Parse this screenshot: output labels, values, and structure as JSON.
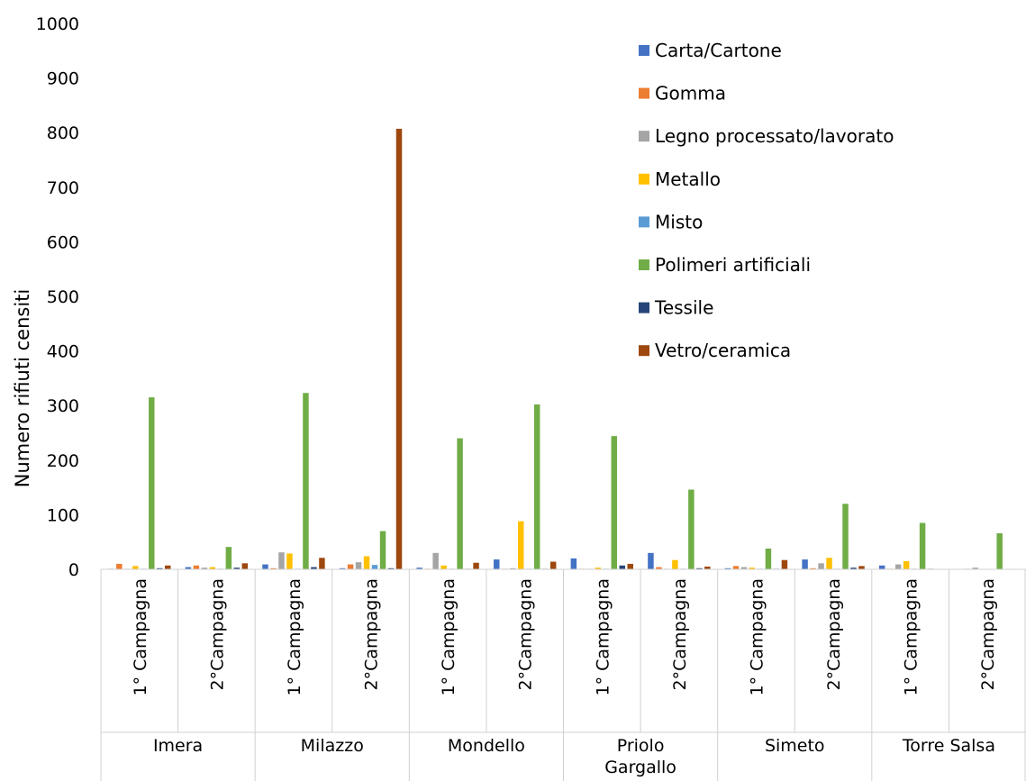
{
  "chart_data": {
    "type": "bar",
    "title": "",
    "xlabel": "",
    "ylabel": "Numero rifiuti  censiti",
    "ylim": [
      0,
      1000
    ],
    "yticks": [
      0,
      100,
      200,
      300,
      400,
      500,
      600,
      700,
      800,
      900,
      1000
    ],
    "grid": false,
    "legend_position": "top-right",
    "groups": [
      "Imera",
      "Milazzo",
      "Mondello",
      "Priolo Gargallo",
      "Simeto",
      "Torre Salsa"
    ],
    "group_lines": [
      [
        "Imera"
      ],
      [
        "Milazzo"
      ],
      [
        "Mondello"
      ],
      [
        "Priolo",
        "Gargallo"
      ],
      [
        "Simeto"
      ],
      [
        "Torre Salsa"
      ]
    ],
    "categories": [
      "1° Campagna",
      "2°Campagna",
      "1° Campagna",
      "2°Campagna",
      "1° Campagna",
      "2°Campagna",
      "1° Campagna",
      "2°Campagna",
      "1° Campagna",
      "2°Campagna",
      "1° Campagna",
      "2°Campagna"
    ],
    "series": [
      {
        "name": "Carta/Cartone",
        "color": "#4472C4",
        "values": [
          1,
          4,
          9,
          2,
          3,
          18,
          20,
          30,
          2,
          18,
          7,
          0
        ]
      },
      {
        "name": "Gomma",
        "color": "#ED7D31",
        "values": [
          10,
          7,
          2,
          9,
          1,
          1,
          1,
          4,
          6,
          2,
          1,
          1
        ]
      },
      {
        "name": "Legno processato/lavorato",
        "color": "#A5A5A5",
        "values": [
          1,
          3,
          31,
          13,
          30,
          2,
          1,
          1,
          4,
          11,
          9,
          3
        ]
      },
      {
        "name": "Metallo",
        "color": "#FFC000",
        "values": [
          6,
          4,
          29,
          24,
          7,
          88,
          3,
          17,
          3,
          21,
          15,
          0
        ]
      },
      {
        "name": "Misto",
        "color": "#5B9BD5",
        "values": [
          1,
          1,
          1,
          8,
          1,
          1,
          1,
          1,
          1,
          1,
          1,
          0
        ]
      },
      {
        "name": "Polimeri artificiali",
        "color": "#70AD47",
        "values": [
          315,
          41,
          323,
          70,
          240,
          302,
          244,
          146,
          38,
          120,
          85,
          66
        ]
      },
      {
        "name": "Tessile",
        "color": "#264478",
        "values": [
          2,
          3,
          4,
          2,
          1,
          1,
          7,
          2,
          1,
          3,
          1,
          0
        ]
      },
      {
        "name": "Vetro/ceramica",
        "color": "#9E480E",
        "values": [
          7,
          11,
          21,
          807,
          12,
          14,
          10,
          5,
          17,
          6,
          0,
          0
        ]
      }
    ]
  }
}
